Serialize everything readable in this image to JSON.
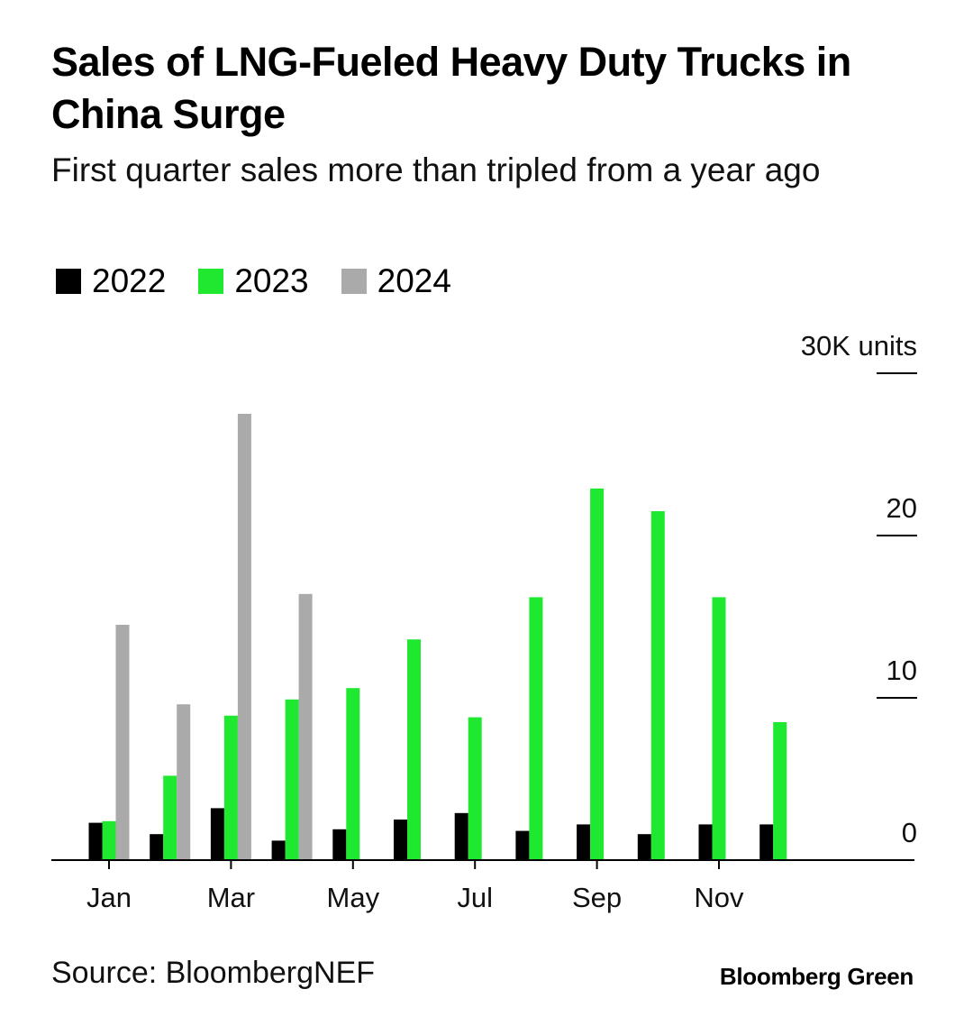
{
  "title": "Sales of LNG-Fueled Heavy Duty Trucks in China Surge",
  "subtitle": "First quarter sales more than tripled from a year ago",
  "source": "Source: BloombergNEF",
  "brand": "Bloomberg Green",
  "colors": {
    "s2022": "#000000",
    "s2023": "#1ee82f",
    "s2024": "#aaaaaa"
  },
  "chart_data": {
    "type": "bar",
    "title": "Sales of LNG-Fueled Heavy Duty Trucks in China Surge",
    "subtitle": "First quarter sales more than tripled from a year ago",
    "xlabel": "",
    "ylabel": "K units",
    "ylim": [
      0,
      30
    ],
    "yticks": [
      0,
      10,
      20,
      30
    ],
    "ytick_labels": [
      "0",
      "10",
      "20",
      "30K units"
    ],
    "categories": [
      "Jan",
      "Feb",
      "Mar",
      "Apr",
      "May",
      "Jun",
      "Jul",
      "Aug",
      "Sep",
      "Oct",
      "Nov",
      "Dec"
    ],
    "xtick_labels": [
      "Jan",
      "Mar",
      "May",
      "Jul",
      "Sep",
      "Nov"
    ],
    "legend_position": "top-left",
    "series": [
      {
        "name": "2022",
        "color": "#000000",
        "values": [
          2.3,
          1.6,
          3.2,
          1.2,
          1.9,
          2.5,
          2.9,
          1.8,
          2.2,
          1.6,
          2.2,
          2.2
        ]
      },
      {
        "name": "2023",
        "color": "#1ee82f",
        "values": [
          2.4,
          5.2,
          8.9,
          9.9,
          10.6,
          13.6,
          8.8,
          16.2,
          22.9,
          21.5,
          16.2,
          8.5
        ]
      },
      {
        "name": "2024",
        "color": "#aaaaaa",
        "values": [
          14.5,
          9.6,
          27.5,
          16.4,
          null,
          null,
          null,
          null,
          null,
          null,
          null,
          null
        ]
      }
    ]
  }
}
